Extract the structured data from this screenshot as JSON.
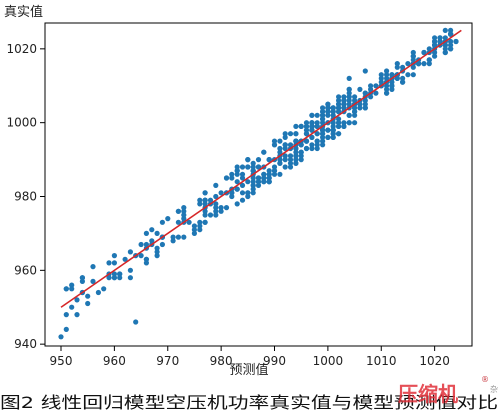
{
  "chart_data": {
    "type": "scatter",
    "title": "",
    "xlabel": "预测值",
    "ylabel": "真实值",
    "xlim": [
      947,
      1027
    ],
    "ylim": [
      939.5,
      1027
    ],
    "xticks": [
      950,
      960,
      970,
      980,
      990,
      1000,
      1010,
      1020
    ],
    "yticks": [
      940,
      960,
      980,
      1000,
      1020
    ],
    "grid": false,
    "legend": "none",
    "point_color": "#1f77b4",
    "fit_line": {
      "color": "#d62728",
      "x": [
        950,
        1025
      ],
      "y": [
        950,
        1025
      ]
    },
    "point_bands": [
      {
        "x_from": 951,
        "x_to": 975,
        "half_width": 5,
        "count": 70
      },
      {
        "x_from": 975,
        "x_to": 985,
        "half_width": 5,
        "count": 60
      },
      {
        "x_from": 985,
        "x_to": 1005,
        "half_width": 5,
        "count": 240
      },
      {
        "x_from": 1005,
        "x_to": 1011,
        "half_width": 3,
        "count": 30
      },
      {
        "x_from": 1011,
        "x_to": 1024,
        "half_width": 3,
        "count": 90
      }
    ],
    "outliers": [
      {
        "x": 950,
        "y": 942
      },
      {
        "x": 951,
        "y": 944
      },
      {
        "x": 964,
        "y": 946
      },
      {
        "x": 1007,
        "y": 1014
      },
      {
        "x": 1004,
        "y": 1012
      }
    ]
  },
  "caption": "图2 线性回归模型空压机功率真实值与模型预测值对比",
  "watermark": {
    "text": "压缩机",
    "badge": "®",
    "side_char": "杂"
  }
}
